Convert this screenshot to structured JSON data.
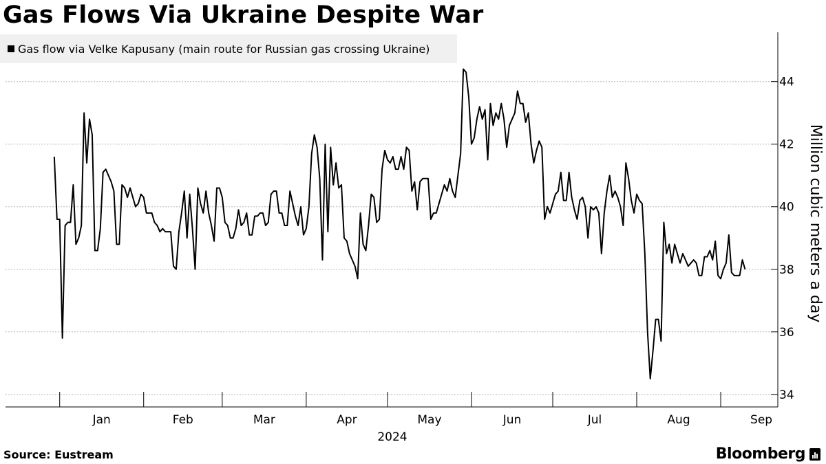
{
  "chart_data": {
    "type": "line",
    "title": "Gas Flows Via Ukraine Despite War",
    "legend": "Gas flow via Velke Kapusany (main route for Russian gas crossing Ukraine)",
    "ylabel": "Million cubic meters a day",
    "year_label": "2024",
    "ylim": [
      33.6,
      45.4
    ],
    "yticks": [
      34,
      36,
      38,
      40,
      42,
      44
    ],
    "x_range_days": [
      -20,
      260
    ],
    "months": [
      {
        "label": "Jan",
        "start": 0,
        "end": 31
      },
      {
        "label": "Feb",
        "start": 31,
        "end": 60
      },
      {
        "label": "Mar",
        "start": 60,
        "end": 91
      },
      {
        "label": "Apr",
        "start": 91,
        "end": 121
      },
      {
        "label": "May",
        "start": 121,
        "end": 152
      },
      {
        "label": "Jun",
        "start": 152,
        "end": 182
      },
      {
        "label": "Jul",
        "start": 182,
        "end": 213
      },
      {
        "label": "Aug",
        "start": 213,
        "end": 244
      },
      {
        "label": "Sep",
        "start": 244,
        "end": 274
      }
    ],
    "series": [
      {
        "name": "Gas flow via Velke Kapusany",
        "start_day": -2,
        "values": [
          41.6,
          39.6,
          39.6,
          35.8,
          39.4,
          39.5,
          39.5,
          40.7,
          38.8,
          39.0,
          39.4,
          43.0,
          41.4,
          42.8,
          42.3,
          38.6,
          38.6,
          39.3,
          41.1,
          41.2,
          41.0,
          40.8,
          40.5,
          38.8,
          38.8,
          40.7,
          40.6,
          40.3,
          40.6,
          40.3,
          40.0,
          40.1,
          40.4,
          40.3,
          39.8,
          39.8,
          39.8,
          39.5,
          39.4,
          39.2,
          39.3,
          39.2,
          39.2,
          39.2,
          38.1,
          38.0,
          39.2,
          39.8,
          40.5,
          39.0,
          40.4,
          39.3,
          38.0,
          40.6,
          40.1,
          39.8,
          40.5,
          39.8,
          39.4,
          38.9,
          40.6,
          40.6,
          40.3,
          39.5,
          39.4,
          39.0,
          39.0,
          39.3,
          39.9,
          39.4,
          39.5,
          39.8,
          39.1,
          39.1,
          39.7,
          39.7,
          39.8,
          39.8,
          39.4,
          39.5,
          40.4,
          40.5,
          40.5,
          39.8,
          39.8,
          39.4,
          39.4,
          40.5,
          40.1,
          39.7,
          39.4,
          40.0,
          39.1,
          39.3,
          40.0,
          41.7,
          42.3,
          41.9,
          40.9,
          38.3,
          42.0,
          39.2,
          41.9,
          40.7,
          41.4,
          40.6,
          40.7,
          39.0,
          38.9,
          38.5,
          38.3,
          38.1,
          37.7,
          39.8,
          38.8,
          38.6,
          39.4,
          40.4,
          40.3,
          39.5,
          39.6,
          41.2,
          41.8,
          41.5,
          41.4,
          41.6,
          41.2,
          41.2,
          41.6,
          41.2,
          41.9,
          41.8,
          40.5,
          40.8,
          39.9,
          40.8,
          40.9,
          40.9,
          40.9,
          39.6,
          39.8,
          39.8,
          40.1,
          40.4,
          40.7,
          40.5,
          40.9,
          40.5,
          40.3,
          41.0,
          41.7,
          44.4,
          44.3,
          43.5,
          42.0,
          42.2,
          42.8,
          43.2,
          42.8,
          43.1,
          41.5,
          43.3,
          42.6,
          43.0,
          42.8,
          43.3,
          42.8,
          41.9,
          42.6,
          42.8,
          43.0,
          43.7,
          43.3,
          43.3,
          42.7,
          43.0,
          42.0,
          41.4,
          41.8,
          42.1,
          41.9,
          39.6,
          40.0,
          39.8,
          40.1,
          40.4,
          40.5,
          41.1,
          40.2,
          40.2,
          41.1,
          40.3,
          39.9,
          39.6,
          40.2,
          40.3,
          40.0,
          39.0,
          40.0,
          39.9,
          40.0,
          39.8,
          38.5,
          39.8,
          40.5,
          41.0,
          40.3,
          40.5,
          40.3,
          40.0,
          39.4,
          41.4,
          40.9,
          40.2,
          39.8,
          40.4,
          40.2,
          40.1,
          38.5,
          36.0,
          34.5,
          35.4,
          36.4,
          36.4,
          35.7,
          39.5,
          38.5,
          38.8,
          38.2,
          38.8,
          38.5,
          38.2,
          38.5,
          38.3,
          38.1,
          38.2,
          38.3,
          38.2,
          37.8,
          37.8,
          38.4,
          38.4,
          38.6,
          38.3,
          38.9,
          37.8,
          37.7,
          38.0,
          38.2,
          39.1,
          37.9,
          37.8,
          37.8,
          37.8,
          38.3,
          38.0
        ]
      }
    ]
  },
  "footer": {
    "source": "Source:  Eustream",
    "brand": "Bloomberg"
  }
}
